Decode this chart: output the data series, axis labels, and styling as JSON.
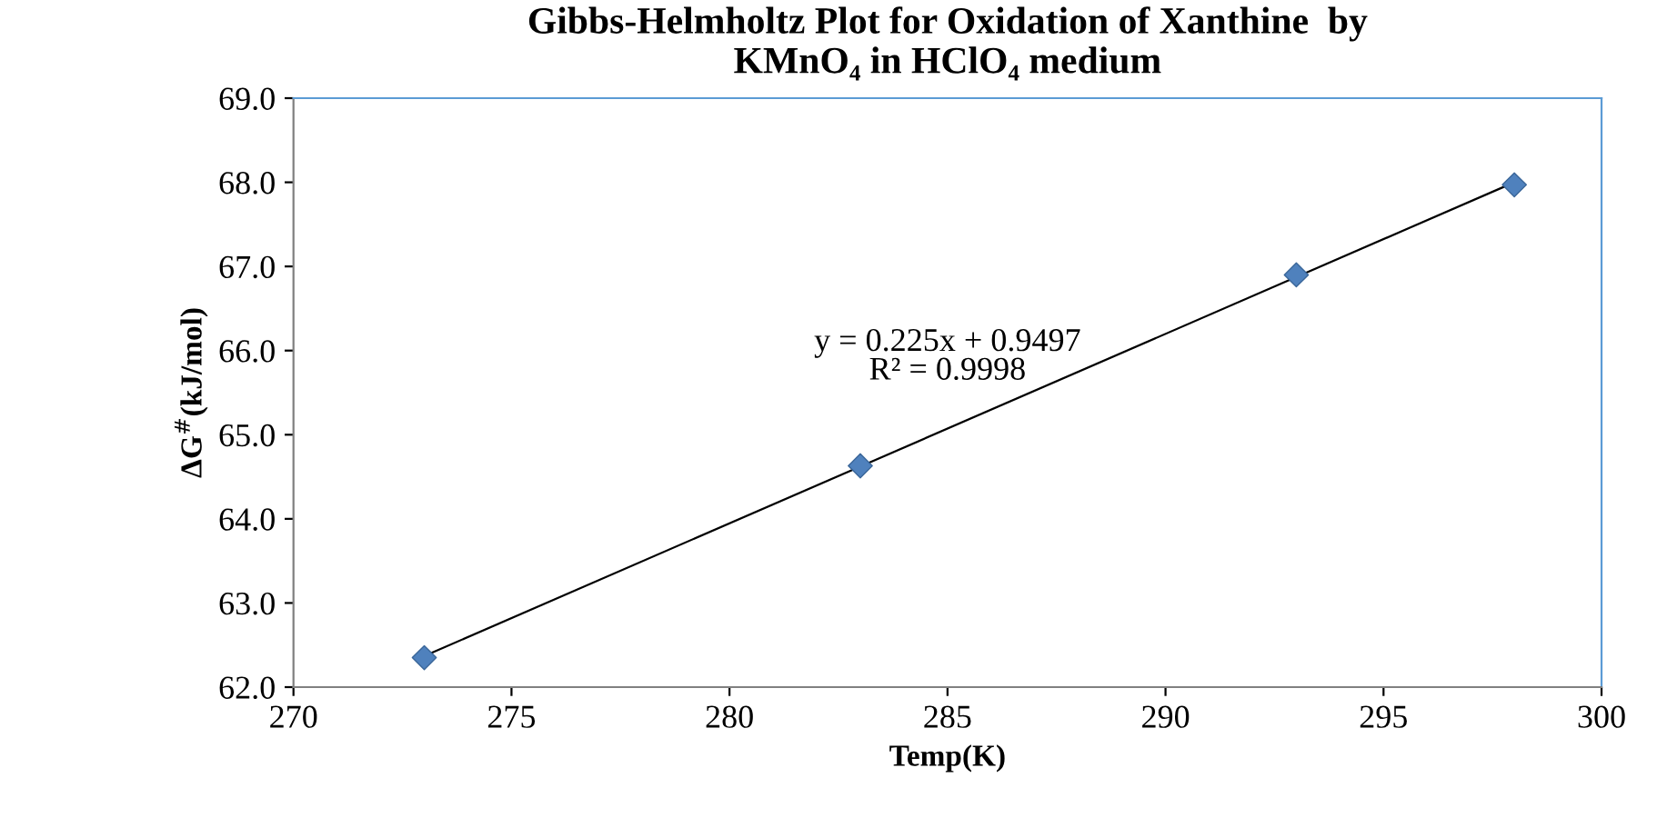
{
  "chart_data": {
    "type": "scatter",
    "title": "Gibbs-Helmholtz Plot for Oxidation of Xanthine  by\nKMnO₄ in HClO₄ medium",
    "xlabel": "Temp(K)",
    "ylabel": "ΔG$^{#}$(kJ/mol)",
    "x": [
      273,
      283,
      293,
      298
    ],
    "series": [
      {
        "color": "#4f81bd",
        "marker": "diamond",
        "values": [
          62.35,
          64.63,
          66.9,
          67.97
        ]
      },
      {
        "type": "line",
        "color": "#000000",
        "marker": "none",
        "x": [
          273,
          298
        ],
        "values": [
          62.37,
          68.0
        ]
      }
    ],
    "annotations": [
      "y = 0.225x + 0.9497\nR² = 0.9998"
    ],
    "xlim": [
      270,
      300
    ],
    "xticks": [
      270,
      275,
      280,
      285,
      290,
      295,
      300
    ],
    "ylim": [
      62.0,
      69.0
    ],
    "yticks": [
      {
        "value": 62,
        "label": "62.0"
      },
      {
        "value": 63,
        "label": "63.0"
      },
      {
        "value": 64,
        "label": "64.0"
      },
      {
        "value": 65,
        "label": "65.0"
      },
      {
        "value": 66,
        "label": "66.0"
      },
      {
        "value": 67,
        "label": "67.0"
      },
      {
        "value": 68,
        "label": "68.0"
      },
      {
        "value": 69,
        "label": "69.0"
      }
    ],
    "grid": false
  }
}
